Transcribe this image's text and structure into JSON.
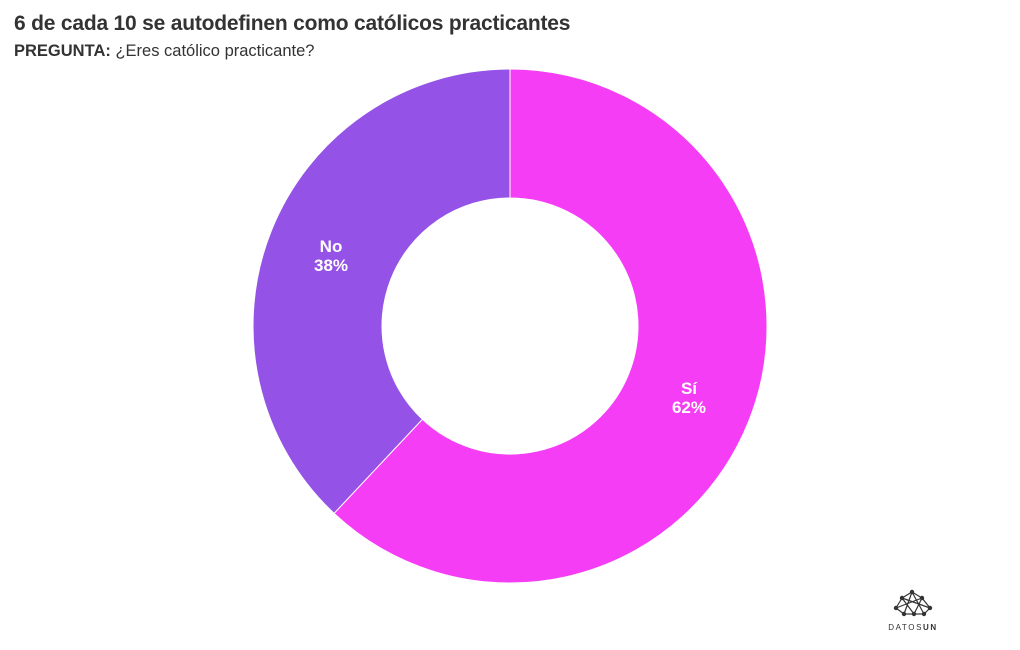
{
  "header": {
    "title": "6 de cada 10 se autodefinen como católicos practicantes",
    "question_label": "PREGUNTA:",
    "question_text": "¿Eres católico practicante?"
  },
  "chart_data": {
    "type": "pie",
    "style": "donut",
    "slices": [
      {
        "name": "Sí",
        "value": 62,
        "value_label": "62%",
        "color": "#f53df5"
      },
      {
        "name": "No",
        "value": 38,
        "value_label": "38%",
        "color": "#9453e6"
      }
    ],
    "start": "top",
    "direction": "clockwise",
    "legend": "none"
  },
  "branding": {
    "logo_text_plain": "DATOS",
    "logo_text_bold": "UN"
  }
}
